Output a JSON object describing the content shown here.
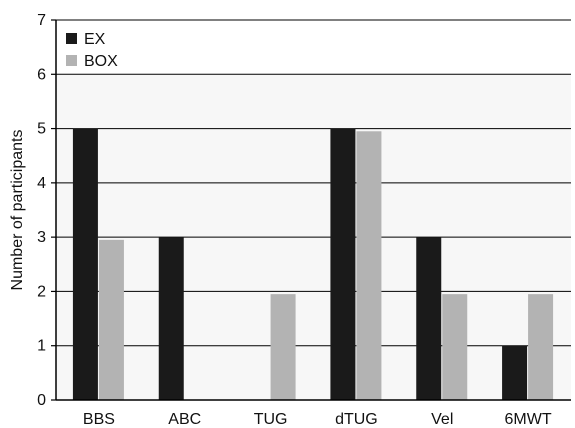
{
  "chart_data": {
    "type": "bar",
    "categories": [
      "BBS",
      "ABC",
      "TUG",
      "dTUG",
      "Vel",
      "6MWT"
    ],
    "series": [
      {
        "name": "EX",
        "values": [
          5,
          3,
          0,
          5,
          3,
          1
        ],
        "color": "#1a1a1a"
      },
      {
        "name": "BOX",
        "values": [
          2.95,
          0,
          1.95,
          4.95,
          1.95,
          1.95
        ],
        "color": "#b3b3b3"
      }
    ],
    "xlabel": "",
    "ylabel": "Number of participants",
    "ylim": [
      0,
      7
    ],
    "yticks": [
      "0",
      "1",
      "2",
      "3",
      "4",
      "5",
      "6",
      "7"
    ],
    "grid": true,
    "legend_position": "top-left",
    "plot_background": "#f7f7f7"
  }
}
